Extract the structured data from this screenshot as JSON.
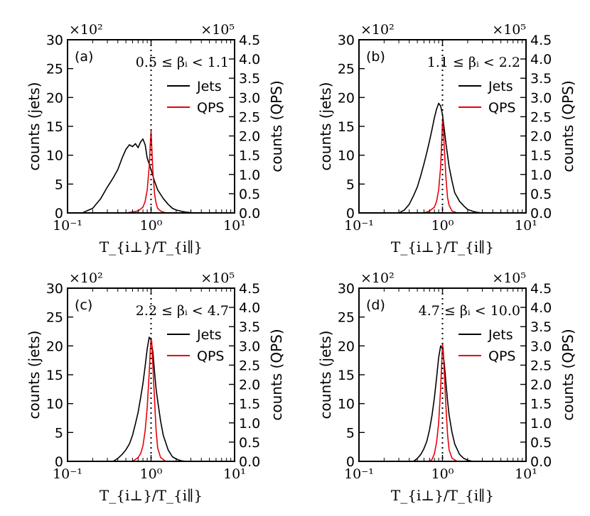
{
  "chart_data": [
    {
      "type": "line",
      "panel": "(a)",
      "range_label": "0.5 ≤ βᵢ < 1.1",
      "xlabel": "T_{i⊥}/T_{i∥}",
      "xscale": "log",
      "xlim": [
        0.1,
        10
      ],
      "x_tick_labels": [
        "10⁻¹",
        "10⁰",
        "10¹"
      ],
      "ylabel_left": "counts (jets)",
      "ylabel_right": "counts (QPS)",
      "ylim_left": [
        0,
        30
      ],
      "ylim_right": [
        0,
        4.5
      ],
      "left_multiplier": "×10²",
      "right_multiplier": "×10⁵",
      "left_ticks": [
        "0",
        "5",
        "10",
        "15",
        "20",
        "25",
        "30"
      ],
      "right_ticks": [
        "0.0",
        "0.5",
        "1.0",
        "1.5",
        "2.0",
        "2.5",
        "3.0",
        "3.5",
        "4.0",
        "4.5"
      ],
      "vline_x": 1.0,
      "legend": [
        {
          "label": "Jets",
          "color": "#000000"
        },
        {
          "label": "QPS",
          "color": "#e8000b"
        }
      ],
      "series": [
        {
          "name": "Jets",
          "axis": "left",
          "x": [
            0.15,
            0.2,
            0.25,
            0.3,
            0.35,
            0.4,
            0.45,
            0.5,
            0.55,
            0.6,
            0.65,
            0.7,
            0.75,
            0.8,
            0.85,
            0.9,
            1.0,
            1.1,
            1.2,
            1.4,
            1.6,
            1.8,
            2.0,
            2.3,
            2.6,
            3.0,
            3.5
          ],
          "y": [
            0,
            0.8,
            2.5,
            4.5,
            6.0,
            7.5,
            9.5,
            11.0,
            11.8,
            11.5,
            12.0,
            11.3,
            12.3,
            12.8,
            11.8,
            9.5,
            7.5,
            5.5,
            4.0,
            2.5,
            1.5,
            0.8,
            0.5,
            0.3,
            0.15,
            0.05,
            0
          ]
        },
        {
          "name": "QPS",
          "axis": "right",
          "x": [
            0.5,
            0.7,
            0.8,
            0.85,
            0.9,
            0.95,
            0.98,
            1.0,
            1.02,
            1.05,
            1.1,
            1.15,
            1.2,
            1.3,
            1.5
          ],
          "y": [
            0,
            0.05,
            0.15,
            0.3,
            0.6,
            1.2,
            1.8,
            2.15,
            1.7,
            1.1,
            0.5,
            0.25,
            0.12,
            0.05,
            0
          ]
        }
      ]
    },
    {
      "type": "line",
      "panel": "(b)",
      "range_label": "1.1 ≤ βᵢ < 2.2",
      "xlabel": "T_{i⊥}/T_{i∥}",
      "xscale": "log",
      "xlim": [
        0.1,
        10
      ],
      "x_tick_labels": [
        "10⁻¹",
        "10⁰",
        "10¹"
      ],
      "ylabel_left": "counts (jets)",
      "ylabel_right": "counts (QPS)",
      "ylim_left": [
        0,
        30
      ],
      "ylim_right": [
        0,
        4.5
      ],
      "left_multiplier": "×10²",
      "right_multiplier": "×10⁵",
      "left_ticks": [
        "0",
        "5",
        "10",
        "15",
        "20",
        "25",
        "30"
      ],
      "right_ticks": [
        "0.0",
        "0.5",
        "1.0",
        "1.5",
        "2.0",
        "2.5",
        "3.0",
        "3.5",
        "4.0",
        "4.5"
      ],
      "vline_x": 1.0,
      "legend": [
        {
          "label": "Jets",
          "color": "#000000"
        },
        {
          "label": "QPS",
          "color": "#e8000b"
        }
      ],
      "series": [
        {
          "name": "Jets",
          "axis": "left",
          "x": [
            0.3,
            0.35,
            0.4,
            0.45,
            0.5,
            0.55,
            0.6,
            0.65,
            0.7,
            0.75,
            0.8,
            0.85,
            0.9,
            0.95,
            1.0,
            1.05,
            1.1,
            1.2,
            1.3,
            1.4,
            1.6,
            1.8,
            2.0,
            2.3,
            2.6,
            3.0
          ],
          "y": [
            0,
            0.5,
            1.5,
            3.0,
            4.5,
            6.5,
            8.5,
            10.5,
            12.5,
            14.5,
            16.5,
            18.0,
            19.0,
            18.5,
            17.0,
            14.5,
            12.0,
            8.0,
            5.5,
            3.5,
            2.0,
            1.2,
            0.6,
            0.3,
            0.1,
            0
          ]
        },
        {
          "name": "QPS",
          "axis": "right",
          "x": [
            0.6,
            0.7,
            0.8,
            0.85,
            0.9,
            0.95,
            0.98,
            1.0,
            1.02,
            1.05,
            1.1,
            1.15,
            1.2,
            1.3,
            1.5
          ],
          "y": [
            0,
            0.05,
            0.15,
            0.3,
            0.6,
            1.2,
            1.9,
            2.4,
            2.3,
            1.7,
            0.9,
            0.4,
            0.2,
            0.05,
            0
          ]
        }
      ]
    },
    {
      "type": "line",
      "panel": "(c)",
      "range_label": "2.2 ≤ βᵢ < 4.7",
      "xlabel": "T_{i⊥}/T_{i∥}",
      "xscale": "log",
      "xlim": [
        0.1,
        10
      ],
      "x_tick_labels": [
        "10⁻¹",
        "10⁰",
        "10¹"
      ],
      "ylabel_left": "counts (jets)",
      "ylabel_right": "counts (QPS)",
      "ylim_left": [
        0,
        30
      ],
      "ylim_right": [
        0,
        4.5
      ],
      "left_multiplier": "×10²",
      "right_multiplier": "×10⁵",
      "left_ticks": [
        "0",
        "5",
        "10",
        "15",
        "20",
        "25",
        "30"
      ],
      "right_ticks": [
        "0.0",
        "0.5",
        "1.0",
        "1.5",
        "2.0",
        "2.5",
        "3.0",
        "3.5",
        "4.0",
        "4.5"
      ],
      "vline_x": 1.0,
      "legend": [
        {
          "label": "Jets",
          "color": "#000000"
        },
        {
          "label": "QPS",
          "color": "#e8000b"
        }
      ],
      "series": [
        {
          "name": "Jets",
          "axis": "left",
          "x": [
            0.35,
            0.4,
            0.45,
            0.5,
            0.55,
            0.6,
            0.65,
            0.7,
            0.75,
            0.8,
            0.85,
            0.9,
            0.95,
            1.0,
            1.05,
            1.1,
            1.15,
            1.2,
            1.3,
            1.4,
            1.6,
            1.8,
            2.0,
            2.3,
            2.6
          ],
          "y": [
            0,
            0.5,
            1.2,
            2.0,
            3.0,
            4.5,
            6.5,
            8.5,
            11.0,
            13.5,
            16.5,
            19.5,
            21.5,
            21.0,
            19.0,
            15.5,
            12.5,
            10.5,
            7.0,
            4.5,
            2.0,
            0.8,
            0.4,
            0.1,
            0
          ]
        },
        {
          "name": "QPS",
          "axis": "right",
          "x": [
            0.6,
            0.7,
            0.75,
            0.8,
            0.85,
            0.9,
            0.95,
            0.98,
            1.0,
            1.02,
            1.05,
            1.1,
            1.15,
            1.2,
            1.3,
            1.5
          ],
          "y": [
            0,
            0.1,
            0.2,
            0.4,
            0.8,
            1.4,
            2.3,
            2.9,
            3.2,
            3.1,
            2.5,
            1.6,
            0.8,
            0.35,
            0.1,
            0
          ]
        }
      ]
    },
    {
      "type": "line",
      "panel": "(d)",
      "range_label": "4.7 ≤ βᵢ < 10.0",
      "xlabel": "T_{i⊥}/T_{i∥}",
      "xscale": "log",
      "xlim": [
        0.1,
        10
      ],
      "x_tick_labels": [
        "10⁻¹",
        "10⁰",
        "10¹"
      ],
      "ylabel_left": "counts (jets)",
      "ylabel_right": "counts (QPS)",
      "ylim_left": [
        0,
        30
      ],
      "ylim_right": [
        0,
        4.5
      ],
      "left_multiplier": "×10²",
      "right_multiplier": "×10⁵",
      "left_ticks": [
        "0",
        "5",
        "10",
        "15",
        "20",
        "25",
        "30"
      ],
      "right_ticks": [
        "0.0",
        "0.5",
        "1.0",
        "1.5",
        "2.0",
        "2.5",
        "3.0",
        "3.5",
        "4.0",
        "4.5"
      ],
      "vline_x": 1.0,
      "legend": [
        {
          "label": "Jets",
          "color": "#000000"
        },
        {
          "label": "QPS",
          "color": "#e8000b"
        }
      ],
      "series": [
        {
          "name": "Jets",
          "axis": "left",
          "x": [
            0.45,
            0.5,
            0.55,
            0.6,
            0.65,
            0.7,
            0.75,
            0.8,
            0.85,
            0.9,
            0.95,
            1.0,
            1.05,
            1.1,
            1.15,
            1.2,
            1.3,
            1.4,
            1.6,
            1.8,
            2.0,
            2.3
          ],
          "y": [
            0,
            0.5,
            1.2,
            2.2,
            3.5,
            5.5,
            8.0,
            11.0,
            14.5,
            18.0,
            20.0,
            19.5,
            17.0,
            13.5,
            10.5,
            8.0,
            5.0,
            3.0,
            1.2,
            0.5,
            0.2,
            0
          ]
        },
        {
          "name": "QPS",
          "axis": "right",
          "x": [
            0.7,
            0.75,
            0.8,
            0.85,
            0.9,
            0.95,
            0.98,
            1.0,
            1.02,
            1.05,
            1.1,
            1.15,
            1.2,
            1.3,
            1.5
          ],
          "y": [
            0,
            0.05,
            0.2,
            0.5,
            1.0,
            1.9,
            2.6,
            3.05,
            2.9,
            2.3,
            1.4,
            0.7,
            0.3,
            0.08,
            0
          ]
        }
      ]
    }
  ]
}
